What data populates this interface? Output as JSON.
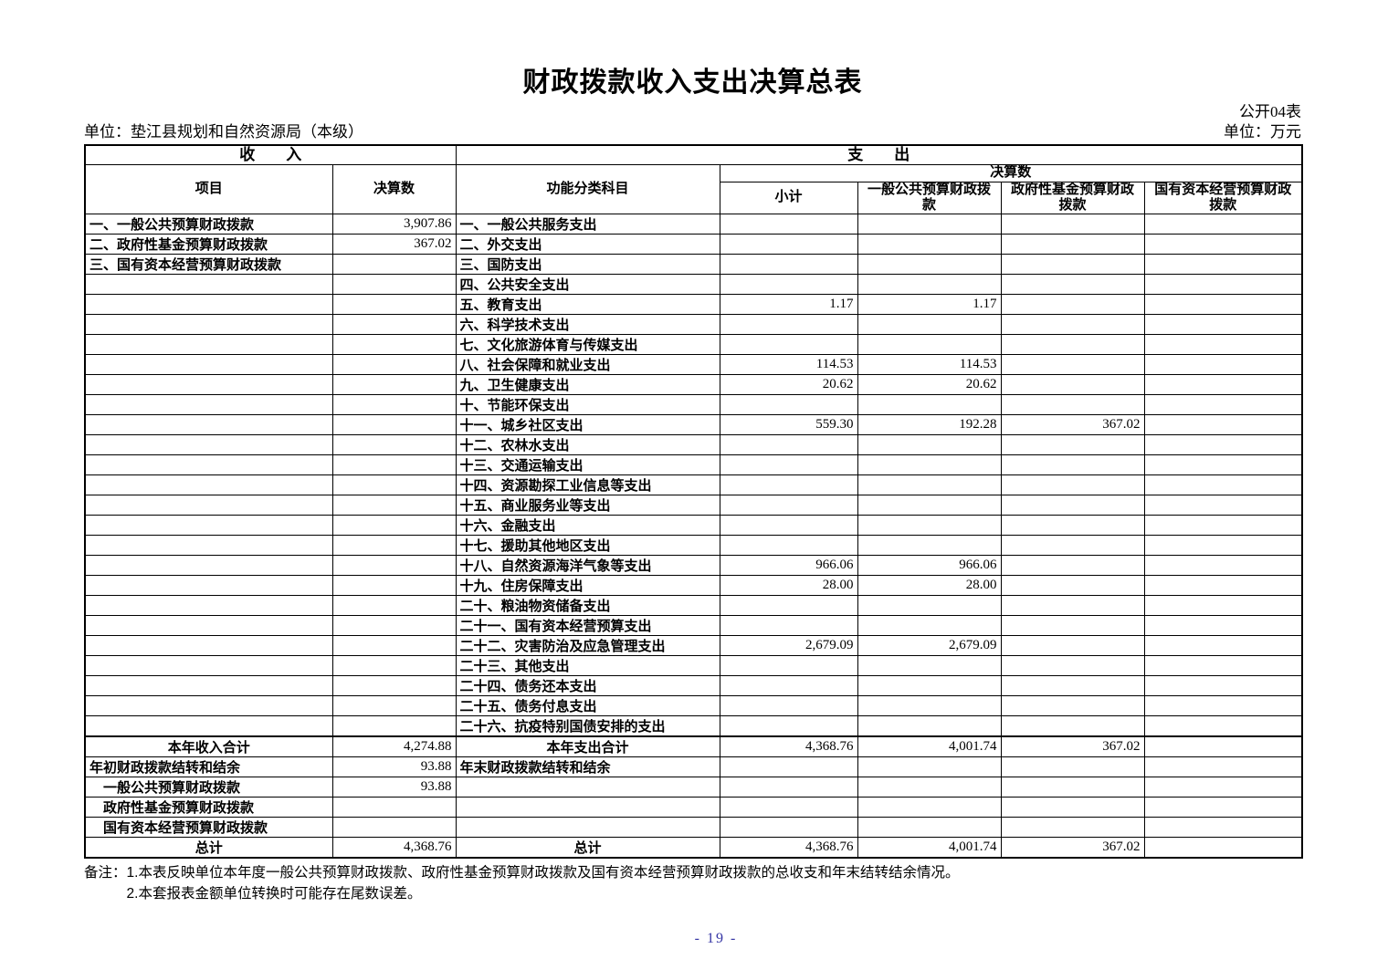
{
  "header": {
    "title": "财政拨款收入支出决算总表",
    "table_code": "公开04表",
    "org_unit": "单位：垫江县规划和自然资源局（本级）",
    "currency_unit": "单位：万元"
  },
  "table": {
    "income_header": "收　　入",
    "expense_header": "支　　出",
    "columns": {
      "item": "项目",
      "income_final": "决算数",
      "function_category": "功能分类科目",
      "final_group": "决算数",
      "subtotal": "小计",
      "general_budget": "一般公共预算财政拨款",
      "gov_fund": "政府性基金预算财政拨款",
      "state_capital": "国有资本经营预算财政拨款"
    },
    "rows": [
      {
        "income_label": "一、一般公共预算财政拨款",
        "income_value": "3,907.86",
        "expense_label": "一、一般公共服务支出"
      },
      {
        "income_label": "二、政府性基金预算财政拨款",
        "income_value": "367.02",
        "expense_label": "二、外交支出"
      },
      {
        "income_label": "三、国有资本经营预算财政拨款",
        "expense_label": "三、国防支出"
      },
      {
        "expense_label": "四、公共安全支出"
      },
      {
        "expense_label": "五、教育支出",
        "subtotal": "1.17",
        "general_budget": "1.17"
      },
      {
        "expense_label": "六、科学技术支出"
      },
      {
        "expense_label": "七、文化旅游体育与传媒支出"
      },
      {
        "expense_label": "八、社会保障和就业支出",
        "subtotal": "114.53",
        "general_budget": "114.53"
      },
      {
        "expense_label": "九、卫生健康支出",
        "subtotal": "20.62",
        "general_budget": "20.62"
      },
      {
        "expense_label": "十、节能环保支出"
      },
      {
        "expense_label": "十一、城乡社区支出",
        "subtotal": "559.30",
        "general_budget": "192.28",
        "gov_fund": "367.02"
      },
      {
        "expense_label": "十二、农林水支出"
      },
      {
        "expense_label": "十三、交通运输支出"
      },
      {
        "expense_label": "十四、资源勘探工业信息等支出"
      },
      {
        "expense_label": "十五、商业服务业等支出"
      },
      {
        "expense_label": "十六、金融支出"
      },
      {
        "expense_label": "十七、援助其他地区支出"
      },
      {
        "expense_label": "十八、自然资源海洋气象等支出",
        "subtotal": "966.06",
        "general_budget": "966.06"
      },
      {
        "expense_label": "十九、住房保障支出",
        "subtotal": "28.00",
        "general_budget": "28.00"
      },
      {
        "expense_label": "二十、粮油物资储备支出"
      },
      {
        "expense_label": "二十一、国有资本经营预算支出"
      },
      {
        "expense_label": "二十二、灾害防治及应急管理支出",
        "subtotal": "2,679.09",
        "general_budget": "2,679.09"
      },
      {
        "expense_label": "二十三、其他支出"
      },
      {
        "expense_label": "二十四、债务还本支出"
      },
      {
        "expense_label": "二十五、债务付息支出"
      },
      {
        "expense_label": "二十六、抗疫特别国债安排的支出"
      }
    ],
    "summary_rows": [
      {
        "income_label": "本年收入合计",
        "income_label_align": "center",
        "income_value": "4,274.88",
        "expense_label": "本年支出合计",
        "expense_label_align": "center",
        "subtotal": "4,368.76",
        "general_budget": "4,001.74",
        "gov_fund": "367.02"
      },
      {
        "income_label": "年初财政拨款结转和结余",
        "income_value": "93.88",
        "expense_label": "年末财政拨款结转和结余"
      },
      {
        "income_label": "一般公共预算财政拨款",
        "income_label_indent": true,
        "income_value": "93.88"
      },
      {
        "income_label": "政府性基金预算财政拨款",
        "income_label_indent": true
      },
      {
        "income_label": "国有资本经营预算财政拨款",
        "income_label_indent": true
      },
      {
        "income_label": "总计",
        "income_label_align": "center",
        "income_value": "4,368.76",
        "expense_label": "总计",
        "expense_label_align": "center",
        "subtotal": "4,368.76",
        "general_budget": "4,001.74",
        "gov_fund": "367.02"
      }
    ]
  },
  "notes": {
    "label": "备注：",
    "line1": "1.本表反映单位本年度一般公共预算财政拨款、政府性基金预算财政拨款及国有资本经营预算财政拨款的总收支和年末结转结余情况。",
    "line2": "2.本套报表金额单位转换时可能存在尾数误差。"
  },
  "footer": {
    "page_number": "- 19 -"
  },
  "colors": {
    "page_number": "#3434a4",
    "text": "#000000",
    "background": "#ffffff"
  }
}
